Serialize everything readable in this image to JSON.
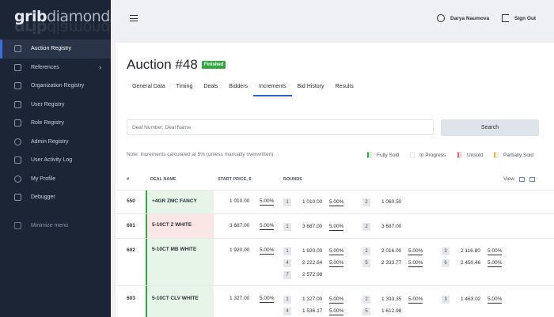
{
  "sidebar": {
    "logo_bold": "grib",
    "logo_light": "diamonds",
    "items": [
      {
        "label": "Auction Registry"
      },
      {
        "label": "References"
      },
      {
        "label": "Organization Registry"
      },
      {
        "label": "User Registry"
      },
      {
        "label": "Role Registry"
      },
      {
        "label": "Admin Registry"
      },
      {
        "label": "User Activity Log"
      },
      {
        "label": "My Profile"
      },
      {
        "label": "Debugger"
      }
    ],
    "minimize_label": "Minimize menu"
  },
  "topbar": {
    "user_name": "Darya Naumova",
    "signout_label": "Sign Out"
  },
  "auction": {
    "title": "Auction #48",
    "status": "Finished"
  },
  "tabs": [
    "General Data",
    "Timing",
    "Deals",
    "Bidders",
    "Increments",
    "Bid History",
    "Results"
  ],
  "search": {
    "placeholder": "Deal Number, Deal Name",
    "button_label": "Search"
  },
  "note": "Note: Increments calculated at 5% (unless manually overwritten)",
  "legend": [
    {
      "label": "Fully Sold",
      "color": "#d9f1db"
    },
    {
      "label": "In Progress",
      "color": "#ffffff"
    },
    {
      "label": "Unsold",
      "color": "#f9d9d9"
    },
    {
      "label": "Partially Sold",
      "color": "#fbf0c9"
    }
  ],
  "table": {
    "headers": {
      "num": "#",
      "name": "DEAL NAME",
      "price": "START PRICE, $",
      "rounds": "ROUNDS"
    },
    "view_label": "View",
    "rows": [
      {
        "num": "550",
        "name": "+4GR ZMC FANCY",
        "price": "1 010.00",
        "pct": "5.00%",
        "status": "green",
        "rounds": [
          {
            "n": "1",
            "val": "1 010.00",
            "pct": "5.00%"
          },
          {
            "n": "2",
            "val": "1 060.50",
            "pct": ""
          }
        ]
      },
      {
        "num": "601",
        "name": "5-10CT Z WHITE",
        "price": "3 687.00",
        "pct": "5.00%",
        "status": "red",
        "rounds": [
          {
            "n": "1",
            "val": "3 687.00",
            "pct": "5.00%"
          },
          {
            "n": "2",
            "val": "3 687.00",
            "pct": ""
          }
        ]
      },
      {
        "num": "602",
        "name": "5-10CT MB WHITE",
        "price": "1 920.00",
        "pct": "5.00%",
        "status": "green",
        "rounds": [
          {
            "n": "1",
            "val": "1 920.00",
            "pct": "5.00%"
          },
          {
            "n": "2",
            "val": "2 016.00",
            "pct": "5.00%"
          },
          {
            "n": "3",
            "val": "2 116.80",
            "pct": "5.00%"
          },
          {
            "n": "4",
            "val": "2 222.64",
            "pct": "5.00%"
          },
          {
            "n": "5",
            "val": "2 333.77",
            "pct": "5.00%"
          },
          {
            "n": "6",
            "val": "2 450.46",
            "pct": "5.00%"
          },
          {
            "n": "7",
            "val": "2 572.98",
            "pct": ""
          }
        ]
      },
      {
        "num": "603",
        "name": "5-10CT CLV WHITE",
        "price": "1 327.00",
        "pct": "5.00%",
        "status": "green",
        "rounds": [
          {
            "n": "1",
            "val": "1 327.00",
            "pct": "5.00%"
          },
          {
            "n": "2",
            "val": "1 393.35",
            "pct": "5.00%"
          },
          {
            "n": "3",
            "val": "1 463.02",
            "pct": "5.00%"
          },
          {
            "n": "4",
            "val": "1 536.17",
            "pct": "5.00%"
          },
          {
            "n": "5",
            "val": "1 612.98",
            "pct": ""
          }
        ]
      }
    ]
  }
}
